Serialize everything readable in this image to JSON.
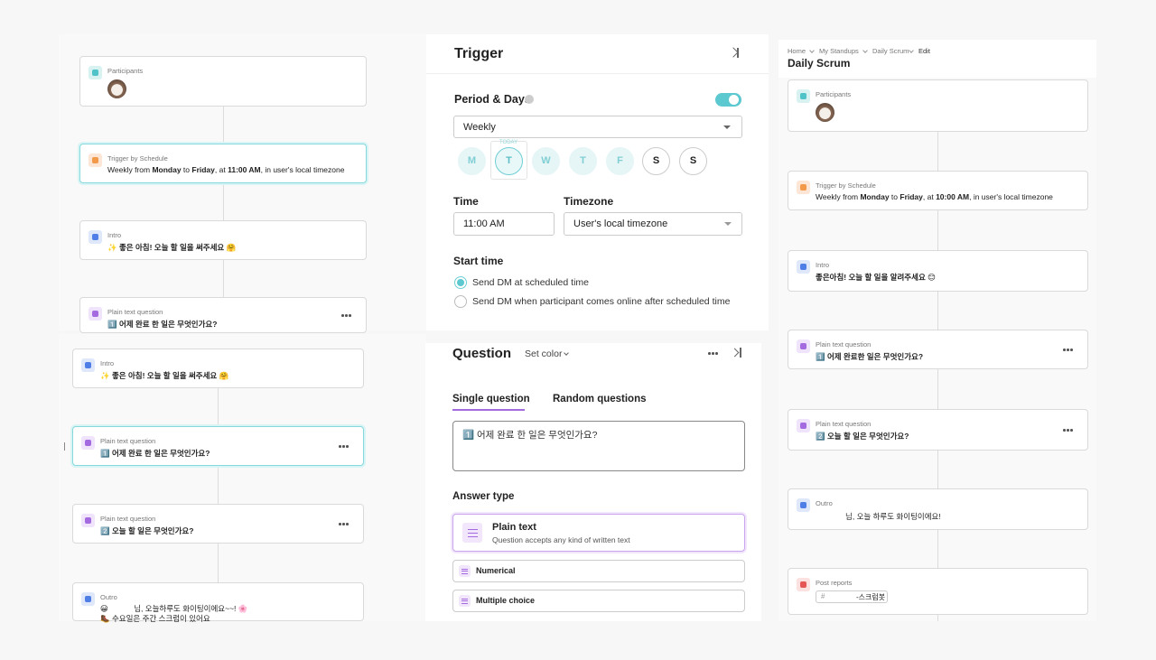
{
  "left_top": {
    "cards": [
      {
        "label": "Participants"
      },
      {
        "label": "Trigger by Schedule",
        "segments": [
          "Weekly from ",
          "Monday",
          " to ",
          "Friday",
          ", at ",
          "11:00 AM",
          ", in user's local timezone"
        ]
      },
      {
        "label": "Intro",
        "text": "✨ 좋은 아침! 오늘 할 일을 써주세요 🤗"
      },
      {
        "label": "Plain text question",
        "text": "1️⃣ 어제 완료 한 일은 무엇인가요?"
      }
    ]
  },
  "left_bottom": {
    "cards": [
      {
        "label": "Intro",
        "text": "✨ 좋은 아침! 오늘 할 일을 써주세요 🤗"
      },
      {
        "label": "Plain text question",
        "text": "1️⃣ 어제 완료 한 일은 무엇인가요?"
      },
      {
        "label": "Plain text question",
        "text": "2️⃣ 오늘 할 일은 무엇인가요?"
      },
      {
        "label": "Outro",
        "lines": [
          "😀            님, 오늘하루도 화이팅이에요~~! 🌸",
          "🥾 수요일은 주간 스크럼이 있어요"
        ]
      }
    ]
  },
  "trigger_panel": {
    "title": "Trigger",
    "period_label": "Period & Days",
    "period_value": "Weekly",
    "today": "TODAY",
    "days": [
      "M",
      "T",
      "W",
      "T",
      "F",
      "S",
      "S"
    ],
    "time_label": "Time",
    "timezone_label": "Timezone",
    "time_value": "11:00 AM",
    "timezone_value": "User's local timezone",
    "start_time_label": "Start time",
    "start_options": [
      "Send DM at scheduled time",
      "Send DM when participant comes online after scheduled time"
    ]
  },
  "question_panel": {
    "title": "Question",
    "set_color": "Set color",
    "tabs": [
      "Single question",
      "Random questions"
    ],
    "question_text": "1️⃣ 어제 완료 한 일은 무엇인가요?",
    "answer_type_label": "Answer type",
    "answers": [
      {
        "title": "Plain text",
        "description": "Question accepts any kind of written text"
      },
      {
        "title": "Numerical"
      },
      {
        "title": "Multiple choice"
      }
    ]
  },
  "right_panel": {
    "breadcrumb": [
      "Home",
      "My Standups",
      "Daily Scrum",
      "Edit"
    ],
    "title": "Daily Scrum",
    "cards": [
      {
        "label": "Participants"
      },
      {
        "label": "Trigger by Schedule",
        "segments": [
          "Weekly from ",
          "Monday",
          " to ",
          "Friday",
          ", at ",
          "10:00 AM",
          ", in user's local timezone"
        ]
      },
      {
        "label": "Intro",
        "text": "좋은아침! 오늘 할 일을 알려주세요 😊"
      },
      {
        "label": "Plain text question",
        "text": "1️⃣ 어제 완료한 일은 무엇인가요?"
      },
      {
        "label": "Plain text question",
        "text": "2️⃣ 오늘 할 일은 무엇인가요?"
      },
      {
        "label": "Outro",
        "lines": [
          "              님, 오늘 하루도 화이팅이에요!"
        ]
      },
      {
        "label": "Post reports",
        "channel_prefix": "#",
        "channel": "-스크럼봇"
      }
    ]
  }
}
